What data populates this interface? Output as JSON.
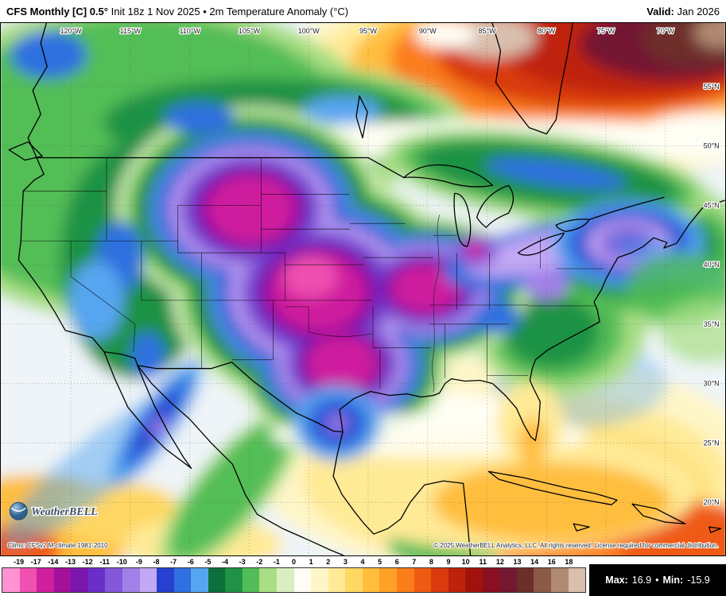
{
  "header": {
    "title_bold": "CFS Monthly [C] 0.5°",
    "title_rest": " Init 18z 1 Nov 2025 • 2m Temperature Anomaly (°C)",
    "valid_label": "Valid:",
    "valid_value": "Jan 2026"
  },
  "map": {
    "lon_labels": [
      "120°W",
      "115°W",
      "110°W",
      "105°W",
      "100°W",
      "95°W",
      "90°W",
      "85°W",
      "80°W",
      "75°W",
      "70°W"
    ],
    "lat_labels": [
      "55°N",
      "50°N",
      "45°N",
      "40°N",
      "35°N",
      "30°N",
      "25°N",
      "20°N"
    ],
    "logo_text": "WeatherBELL",
    "climo_note": "Climo: CFSv2 M-climate 1981-2010",
    "copyright": "© 2025 WeatherBELL Analytics, LLC. All rights reserved. License required for commercial distribution."
  },
  "colorbar": {
    "labels": [
      "-19",
      "-17",
      "-14",
      "-13",
      "-12",
      "-11",
      "-10",
      "-9",
      "-8",
      "-7",
      "-6",
      "-5",
      "-4",
      "-3",
      "-2",
      "-1",
      "0",
      "1",
      "2",
      "3",
      "4",
      "5",
      "6",
      "7",
      "8",
      "9",
      "10",
      "11",
      "12",
      "13",
      "14",
      "16",
      "18"
    ],
    "colors": [
      "#ff93d1",
      "#f050b0",
      "#cf1f9e",
      "#a3109a",
      "#7a16ae",
      "#6a2fc9",
      "#8257d8",
      "#a180e8",
      "#c3a8f5",
      "#2840cf",
      "#2f6fe0",
      "#56a5f0",
      "#0d703c",
      "#1f9245",
      "#52bd57",
      "#a9de84",
      "#d9efc2",
      "#fffef4",
      "#fff6c8",
      "#ffea96",
      "#ffd763",
      "#ffbe3d",
      "#ffa127",
      "#fb7d1a",
      "#ef5a12",
      "#d93a0e",
      "#bf220b",
      "#a2120d",
      "#891020",
      "#731830",
      "#6d2f2a",
      "#8a5a45",
      "#b08a72",
      "#d9bfae"
    ]
  },
  "stats": {
    "max_label": "Max:",
    "max_value": "16.9",
    "separator": "•",
    "min_label": "Min:",
    "min_value": "-15.9"
  }
}
